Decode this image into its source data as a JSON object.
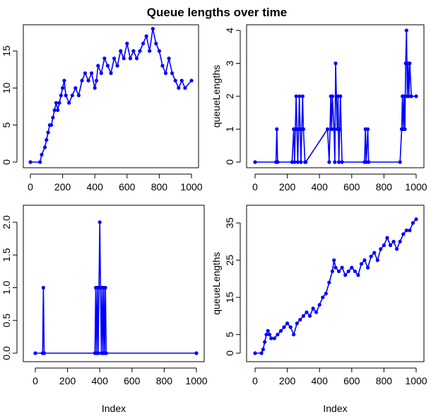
{
  "title": "Queue lengths over time",
  "colors": {
    "series": "#0000ff",
    "axis": "#000000",
    "background": "#ffffff"
  },
  "chart_data": [
    {
      "type": "line",
      "series_style": "points-and-lines",
      "xlabel": "",
      "ylabel": "",
      "xlim": [
        0,
        1000
      ],
      "ylim": [
        0,
        18
      ],
      "xticks": [
        "0",
        "200",
        "400",
        "600",
        "800",
        "1000"
      ],
      "yticks": [
        "0",
        "5",
        "10",
        "15"
      ],
      "series": [
        {
          "x": [
            0,
            60,
            70,
            90,
            100,
            110,
            120,
            130,
            140,
            150,
            160,
            170,
            180,
            190,
            200,
            210,
            220,
            240,
            260,
            280,
            300,
            320,
            340,
            360,
            380,
            400,
            410,
            420,
            440,
            460,
            480,
            500,
            520,
            540,
            560,
            580,
            600,
            620,
            640,
            660,
            680,
            700,
            720,
            740,
            760,
            780,
            800,
            820,
            840,
            860,
            880,
            900,
            920,
            940,
            960,
            1000
          ],
          "y": [
            0,
            0,
            1,
            2,
            3,
            4,
            5,
            5,
            6,
            7,
            8,
            7,
            8,
            9,
            10,
            11,
            9,
            8,
            9,
            10,
            9,
            11,
            12,
            11,
            12,
            10,
            11,
            13,
            12,
            14,
            13,
            12,
            14,
            13,
            15,
            14,
            16,
            14,
            15,
            14,
            15,
            16,
            17,
            15,
            18,
            16,
            15,
            13,
            12,
            14,
            12,
            11,
            10,
            11,
            10,
            11
          ]
        }
      ]
    },
    {
      "type": "line",
      "series_style": "points-and-lines",
      "xlabel": "",
      "ylabel": "queueLengths",
      "xlim": [
        0,
        1000
      ],
      "ylim": [
        0,
        4
      ],
      "xticks": [
        "0",
        "200",
        "400",
        "600",
        "800",
        "1000"
      ],
      "yticks": [
        "0",
        "1",
        "2",
        "3",
        "4"
      ],
      "series": [
        {
          "x": [
            0,
            130,
            135,
            140,
            230,
            240,
            245,
            250,
            255,
            260,
            265,
            270,
            275,
            280,
            285,
            290,
            295,
            300,
            310,
            315,
            450,
            460,
            470,
            475,
            480,
            490,
            495,
            500,
            505,
            510,
            515,
            520,
            525,
            530,
            540,
            680,
            685,
            690,
            700,
            705,
            900,
            910,
            915,
            920,
            925,
            930,
            935,
            940,
            945,
            950,
            955,
            960,
            970,
            1000
          ],
          "y": [
            0,
            0,
            1,
            0,
            0,
            1,
            0,
            1,
            2,
            1,
            0,
            1,
            2,
            1,
            0,
            1,
            2,
            1,
            0,
            0,
            1,
            0,
            2,
            1,
            2,
            1,
            0,
            3,
            2,
            1,
            2,
            0,
            1,
            2,
            0,
            0,
            1,
            0,
            1,
            0,
            0,
            1,
            2,
            1,
            2,
            1,
            3,
            4,
            2,
            3,
            2,
            3,
            2,
            2
          ]
        }
      ]
    },
    {
      "type": "line",
      "series_style": "points-and-lines",
      "xlabel": "Index",
      "ylabel": "",
      "xlim": [
        0,
        1000
      ],
      "ylim": [
        0,
        2
      ],
      "xticks": [
        "0",
        "200",
        "400",
        "600",
        "800",
        "1000"
      ],
      "yticks": [
        "0.0",
        "0.5",
        "1.0",
        "1.5",
        "2.0"
      ],
      "series": [
        {
          "x": [
            0,
            45,
            50,
            55,
            370,
            375,
            380,
            385,
            390,
            395,
            400,
            405,
            410,
            415,
            420,
            425,
            430,
            435,
            440,
            1000
          ],
          "y": [
            0,
            0,
            1,
            0,
            0,
            1,
            0,
            1,
            0,
            1,
            2,
            1,
            0,
            1,
            0,
            1,
            0,
            1,
            0,
            0
          ]
        }
      ]
    },
    {
      "type": "line",
      "series_style": "points-and-lines",
      "xlabel": "Index",
      "ylabel": "queueLengths",
      "xlim": [
        0,
        1000
      ],
      "ylim": [
        0,
        36
      ],
      "xticks": [
        "0",
        "200",
        "400",
        "600",
        "800",
        "1000"
      ],
      "yticks": [
        "0",
        "5",
        "15",
        "25",
        "35"
      ],
      "series": [
        {
          "x": [
            0,
            40,
            50,
            60,
            70,
            80,
            90,
            100,
            120,
            140,
            160,
            180,
            200,
            220,
            240,
            260,
            280,
            300,
            320,
            340,
            360,
            380,
            400,
            420,
            440,
            460,
            480,
            490,
            500,
            520,
            540,
            560,
            580,
            600,
            620,
            640,
            660,
            680,
            700,
            720,
            740,
            760,
            780,
            800,
            820,
            840,
            860,
            880,
            900,
            920,
            940,
            960,
            980,
            1000
          ],
          "y": [
            0,
            0,
            1,
            3,
            5,
            6,
            5,
            4,
            4,
            5,
            6,
            7,
            8,
            7,
            5,
            8,
            9,
            10,
            11,
            10,
            12,
            11,
            13,
            15,
            16,
            19,
            22,
            25,
            23,
            22,
            23,
            21,
            22,
            23,
            22,
            21,
            24,
            25,
            23,
            26,
            27,
            25,
            28,
            29,
            31,
            29,
            30,
            28,
            30,
            32,
            33,
            33,
            35,
            36
          ]
        }
      ]
    }
  ]
}
